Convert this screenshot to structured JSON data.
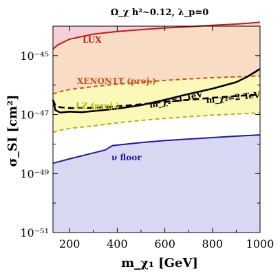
{
  "chart_data": {
    "type": "area",
    "title": "Ω_χ h²~0.12, λ_p=0",
    "xlabel": "m_χ₁ [GeV]",
    "ylabel": "σ_SI [cm²]",
    "xlim": [
      130,
      1000
    ],
    "ylim_log10": [
      -51,
      -44
    ],
    "log_y": true,
    "x_ticks": [
      200,
      400,
      600,
      800,
      1000
    ],
    "y_ticks": [
      {
        "exp": -45,
        "label": "10⁻⁴⁵"
      },
      {
        "exp": -47,
        "label": "10⁻⁴⁷"
      },
      {
        "exp": -49,
        "label": "10⁻⁴⁹"
      },
      {
        "exp": -51,
        "label": "10⁻⁵¹"
      }
    ],
    "regions": [
      {
        "id": "lux",
        "color": "#f5d0d8"
      },
      {
        "id": "xenon",
        "color": "#f8dcc4"
      },
      {
        "id": "lz",
        "color": "#fbf8b8"
      },
      {
        "id": "nu",
        "color": "#d8d8f2"
      }
    ],
    "series": [
      {
        "id": "lux",
        "name": "LUX",
        "style": "solid",
        "color": "#c0191c",
        "width": 2,
        "x": [
          130,
          150,
          200,
          300,
          400,
          500,
          600,
          700,
          800,
          900,
          1000
        ],
        "log_sigma": [
          -44.78,
          -44.64,
          -44.44,
          -44.27,
          -44.18,
          -44.12,
          -44.06,
          -44.02,
          -43.97,
          -43.93,
          -43.87
        ]
      },
      {
        "id": "xenon",
        "name": "XENON1T (proj.)",
        "style": "dashed",
        "color": "#c0581a",
        "width": 2,
        "x": [
          130,
          160,
          200,
          300,
          400,
          500,
          600,
          700,
          800,
          900,
          1000
        ],
        "log_sigma": [
          -46.3,
          -46.22,
          -46.15,
          -46.05,
          -45.97,
          -45.9,
          -45.84,
          -45.79,
          -45.75,
          -45.72,
          -45.69
        ]
      },
      {
        "id": "lz",
        "name": "LZ (proj.)",
        "style": "dashed",
        "color": "#b5b20e",
        "width": 2,
        "x": [
          130,
          160,
          200,
          300,
          400,
          500,
          600,
          700,
          800,
          900,
          1000
        ],
        "log_sigma": [
          -47.6,
          -47.53,
          -47.47,
          -47.38,
          -47.28,
          -47.2,
          -47.13,
          -47.07,
          -47.02,
          -46.98,
          -46.94
        ]
      },
      {
        "id": "nu",
        "name": "ν floor",
        "style": "solid",
        "color": "#1f1a9a",
        "width": 2,
        "x": [
          130,
          200,
          300,
          350,
          380,
          500,
          600,
          700,
          800,
          900,
          1000
        ],
        "log_sigma": [
          -48.65,
          -48.5,
          -48.3,
          -48.2,
          -48.05,
          -47.95,
          -47.88,
          -47.83,
          -47.78,
          -47.73,
          -47.69
        ]
      },
      {
        "id": "m2_1tev",
        "name": "m_χ₂=1 TeV",
        "style": "solid",
        "color": "#000000",
        "width": 2.6,
        "x": [
          130,
          140,
          160,
          200,
          250,
          300,
          400,
          500,
          600,
          700,
          800,
          900,
          950,
          1000
        ],
        "log_sigma": [
          -46.5,
          -46.85,
          -46.93,
          -46.9,
          -46.92,
          -46.88,
          -46.8,
          -46.68,
          -46.5,
          -46.3,
          -46.12,
          -45.9,
          -45.7,
          -45.45
        ]
      },
      {
        "id": "m2_2tev",
        "name": "m_χ₂=2 TeV",
        "style": "dashed",
        "color": "#000000",
        "width": 2.6,
        "x": [
          130,
          140,
          160,
          200,
          300,
          400,
          500,
          600,
          700,
          800,
          900,
          1000
        ],
        "log_sigma": [
          -46.5,
          -46.7,
          -46.75,
          -46.78,
          -46.77,
          -46.72,
          -46.65,
          -46.57,
          -46.5,
          -46.43,
          -46.37,
          -46.32
        ]
      }
    ],
    "labels": [
      {
        "id": "lux",
        "text": "LUX",
        "color": "#c0191c"
      },
      {
        "id": "xenon",
        "text": "XENON1T (proj.)",
        "color": "#c0581a"
      },
      {
        "id": "lz",
        "text": "LZ (proj.)",
        "color": "#b5b20e"
      },
      {
        "id": "nu",
        "text": "ν floor",
        "color": "#1f1a9a"
      },
      {
        "id": "m2_1tev",
        "text": "m_χ₂=1 TeV",
        "color": "#000000"
      },
      {
        "id": "m2_2tev",
        "text": "m_χ₂=2 TeV",
        "color": "#000000"
      }
    ]
  }
}
